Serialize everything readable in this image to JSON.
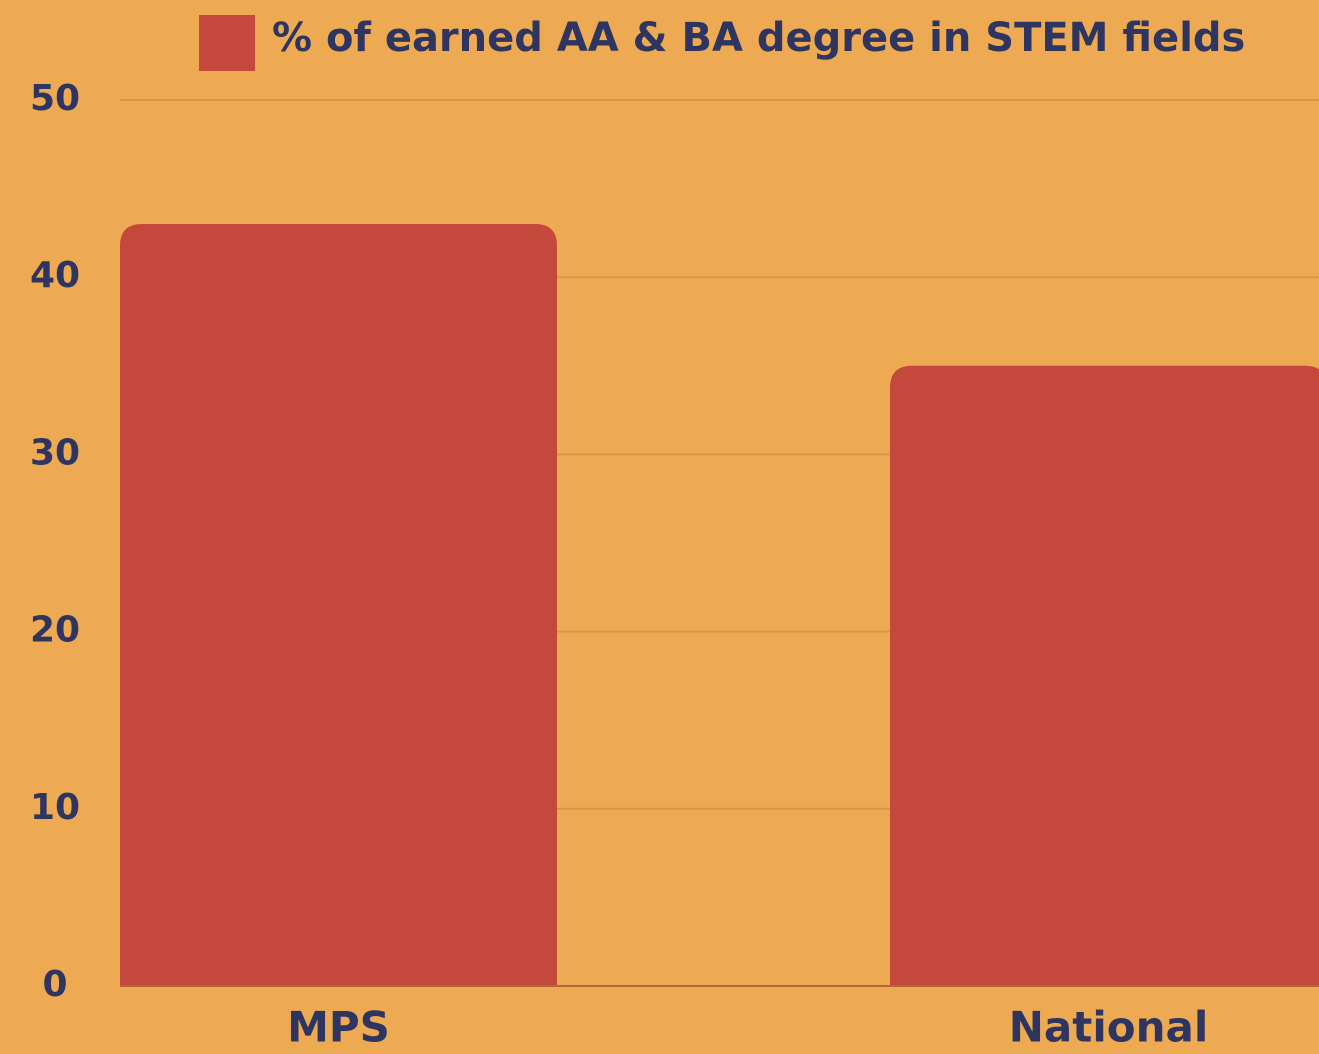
{
  "chart_data": {
    "type": "bar",
    "categories": [
      "MPS",
      "National"
    ],
    "series": [
      {
        "name": "% of earned AA & BA degree in STEM fields",
        "color": "#c4483b",
        "values": [
          43,
          35
        ]
      }
    ],
    "ylim": [
      0,
      50
    ],
    "yticks": [
      0,
      10,
      20,
      30,
      40,
      50
    ],
    "grid": true,
    "legend": "top"
  }
}
